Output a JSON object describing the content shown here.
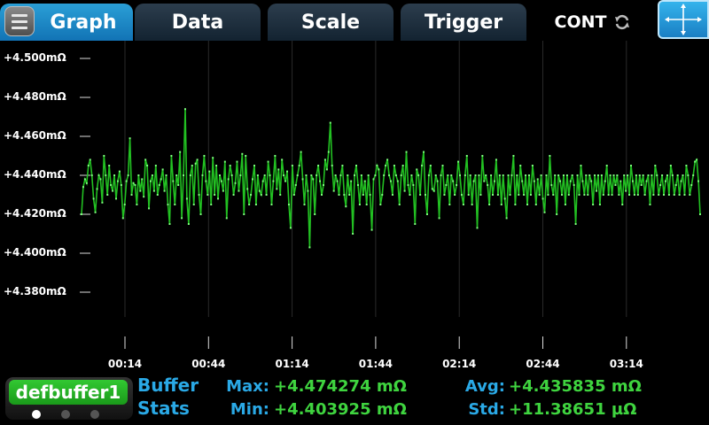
{
  "tabs": [
    {
      "label": "Graph",
      "active": true
    },
    {
      "label": "Data",
      "active": false
    },
    {
      "label": "Scale",
      "active": false
    },
    {
      "label": "Trigger",
      "active": false
    }
  ],
  "mode": {
    "label": "CONT"
  },
  "colors": {
    "trace": "#22c022",
    "accent": "#2aa9e6",
    "value": "#3fd43f",
    "buffer": "#1fae1f"
  },
  "chart_data": {
    "type": "line",
    "ylim": [
      4.37,
      4.5
    ],
    "y_ticks": [
      {
        "value": 4.5,
        "label": "+4.500mΩ"
      },
      {
        "value": 4.48,
        "label": "+4.480mΩ"
      },
      {
        "value": 4.46,
        "label": "+4.460mΩ"
      },
      {
        "value": 4.44,
        "label": "+4.440mΩ"
      },
      {
        "value": 4.42,
        "label": "+4.420mΩ"
      },
      {
        "value": 4.4,
        "label": "+4.400mΩ"
      },
      {
        "value": 4.38,
        "label": "+4.380mΩ"
      }
    ],
    "x_ticks": [
      "00:14",
      "00:44",
      "01:14",
      "01:44",
      "02:14",
      "02:44",
      "03:14"
    ],
    "series": [
      {
        "values": [
          4.42,
          4.434,
          4.438,
          4.436,
          4.445,
          4.448,
          4.44,
          4.428,
          4.421,
          4.433,
          4.44,
          4.438,
          4.426,
          4.45,
          4.44,
          4.43,
          4.445,
          4.435,
          4.432,
          4.44,
          4.428,
          4.437,
          4.442,
          4.435,
          4.418,
          4.425,
          4.437,
          4.44,
          4.459,
          4.43,
          4.436,
          4.435,
          4.425,
          4.44,
          4.432,
          4.438,
          4.429,
          4.448,
          4.445,
          4.423,
          4.437,
          4.44,
          4.432,
          4.445,
          4.43,
          4.435,
          4.438,
          4.443,
          4.432,
          4.44,
          4.425,
          4.415,
          4.45,
          4.437,
          4.425,
          4.44,
          4.435,
          4.452,
          4.418,
          4.44,
          4.474,
          4.428,
          4.415,
          4.44,
          4.445,
          4.425,
          4.446,
          4.448,
          4.43,
          4.42,
          4.44,
          4.45,
          4.437,
          4.43,
          4.442,
          4.425,
          4.449,
          4.43,
          4.445,
          4.428,
          4.44,
          4.437,
          4.432,
          4.447,
          4.418,
          4.438,
          4.445,
          4.44,
          4.43,
          4.436,
          4.447,
          4.432,
          4.44,
          4.451,
          4.42,
          4.45,
          4.433,
          4.425,
          4.43,
          4.438,
          4.445,
          4.425,
          4.44,
          4.432,
          4.43,
          4.437,
          4.44,
          4.43,
          4.447,
          4.44,
          4.425,
          4.437,
          4.45,
          4.433,
          4.443,
          4.43,
          4.448,
          4.44,
          4.437,
          4.442,
          4.425,
          4.413,
          4.445,
          4.43,
          4.435,
          4.44,
          4.445,
          4.452,
          4.438,
          4.425,
          4.44,
          4.432,
          4.403,
          4.44,
          4.438,
          4.42,
          4.44,
          4.445,
          4.437,
          4.43,
          4.435,
          4.448,
          4.443,
          4.452,
          4.467,
          4.445,
          4.432,
          4.44,
          4.437,
          4.43,
          4.44,
          4.445,
          4.43,
          4.424,
          4.44,
          4.43,
          4.437,
          4.41,
          4.44,
          4.445,
          4.435,
          4.425,
          4.44,
          4.43,
          4.437,
          4.425,
          4.44,
          4.43,
          4.412,
          4.438,
          4.44,
          4.445,
          4.443,
          4.425,
          4.43,
          4.44,
          4.445,
          4.448,
          4.44,
          4.437,
          4.43,
          4.445,
          4.44,
          4.437,
          4.425,
          4.44,
          4.445,
          4.432,
          4.452,
          4.435,
          4.43,
          4.44,
          4.435,
          4.415,
          4.443,
          4.44,
          4.43,
          4.445,
          4.452,
          4.43,
          4.42,
          4.44,
          4.445,
          4.433,
          4.432,
          4.44,
          4.437,
          4.418,
          4.44,
          4.445,
          4.43,
          4.435,
          4.44,
          4.425,
          4.44,
          4.437,
          4.43,
          4.435,
          4.447,
          4.44,
          4.43,
          4.425,
          4.44,
          4.45,
          4.43,
          4.44,
          4.425,
          4.437,
          4.44,
          4.413,
          4.44,
          4.43,
          4.45,
          4.437,
          4.44,
          4.435,
          4.425,
          4.44,
          4.43,
          4.437,
          4.448,
          4.43,
          4.44,
          4.425,
          4.44,
          4.428,
          4.418,
          4.44,
          4.43,
          4.44,
          4.45,
          4.425,
          4.44,
          4.43,
          4.445,
          4.437,
          4.43,
          4.44,
          4.425,
          4.44,
          4.43,
          4.445,
          4.437,
          4.425,
          4.438,
          4.43,
          4.44,
          4.428,
          4.421,
          4.44,
          4.43,
          4.45,
          4.435,
          4.43,
          4.44,
          4.42,
          4.44,
          4.437,
          4.43,
          4.44,
          4.425,
          4.44,
          4.43,
          4.437,
          4.44,
          4.435,
          4.415,
          4.44,
          4.43,
          4.445,
          4.437,
          4.43,
          4.44,
          4.43,
          4.44,
          4.437,
          4.425,
          4.44,
          4.432,
          4.44,
          4.425,
          4.44,
          4.43,
          4.437,
          4.445,
          4.43,
          4.44,
          4.43,
          4.44,
          4.435,
          4.44,
          4.43,
          4.437,
          4.425,
          4.44,
          4.432,
          4.44,
          4.43,
          4.445,
          4.437,
          4.43,
          4.44,
          4.43,
          4.44,
          4.435,
          4.44,
          4.43,
          4.437,
          4.44,
          4.425,
          4.44,
          4.43,
          4.445,
          4.44,
          4.43,
          4.435,
          4.44,
          4.43,
          4.437,
          4.44,
          4.43,
          4.445,
          4.44,
          4.43,
          4.435,
          4.44,
          4.43,
          4.437,
          4.44,
          4.43,
          4.445,
          4.44,
          4.43,
          4.435,
          4.44,
          4.447,
          4.448,
          4.437,
          4.42
        ]
      }
    ]
  },
  "buffer": {
    "name": "defbuffer1",
    "title_line1": "Buffer",
    "title_line2": "Stats",
    "max_label": "Max:",
    "max_value": "+4.474274 mΩ",
    "min_label": "Min:",
    "min_value": "+4.403925 mΩ",
    "avg_label": "Avg:",
    "avg_value": "+4.435835 mΩ",
    "std_label": "Std:",
    "std_value": "+11.38651 µΩ"
  }
}
